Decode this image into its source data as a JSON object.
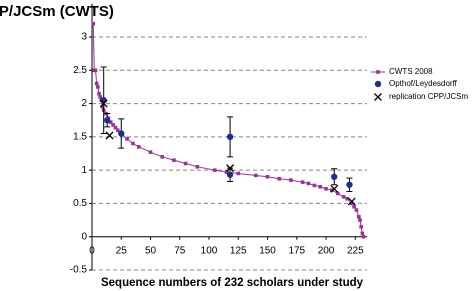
{
  "chart_data": {
    "type": "scatter",
    "title": "CPP/JCSm (CWTS)",
    "x_label": "Sequence numbers of 232 scholars under study",
    "xlim": [
      0,
      235
    ],
    "xticks": [
      0,
      25,
      50,
      75,
      100,
      125,
      150,
      175,
      200,
      225
    ],
    "ylim": [
      -0.5,
      3.5
    ],
    "yticks": [
      -0.5,
      0,
      0.5,
      1,
      1.5,
      2,
      2.5,
      3
    ],
    "grid": true,
    "legend": "right",
    "series": [
      {
        "name": "CWTS 2008",
        "color": "#993399",
        "marker": "square",
        "line": true,
        "x": [
          1,
          2,
          3,
          4,
          5,
          6,
          7,
          8,
          9,
          10,
          12,
          14,
          16,
          18,
          20,
          22,
          25,
          30,
          35,
          40,
          50,
          60,
          70,
          80,
          90,
          105,
          115,
          125,
          140,
          150,
          160,
          170,
          180,
          185,
          190,
          195,
          200,
          205,
          210,
          215,
          218,
          222,
          224,
          226,
          228,
          229,
          230,
          231,
          232
        ],
        "values": [
          3.2,
          2.5,
          2.5,
          2.3,
          2.25,
          2.15,
          2.1,
          2.05,
          1.95,
          1.9,
          1.85,
          1.78,
          1.72,
          1.68,
          1.64,
          1.6,
          1.55,
          1.47,
          1.4,
          1.35,
          1.27,
          1.2,
          1.15,
          1.1,
          1.05,
          1.0,
          0.97,
          0.95,
          0.92,
          0.9,
          0.87,
          0.85,
          0.82,
          0.8,
          0.77,
          0.75,
          0.72,
          0.7,
          0.65,
          0.6,
          0.57,
          0.5,
          0.45,
          0.4,
          0.3,
          0.25,
          0.15,
          0.05,
          0
        ]
      },
      {
        "name": "Opthof/Leydesdorff",
        "color": "#1f2e8c",
        "marker": "circle",
        "x": [
          10,
          13,
          25,
          118,
          118,
          207,
          220
        ],
        "values": [
          2.05,
          1.75,
          1.55,
          1.5,
          0.93,
          0.9,
          0.78
        ],
        "errors": [
          0.5,
          0.1,
          0.22,
          0.3,
          0.1,
          0.12,
          0.1
        ]
      },
      {
        "name": "replication CPP/JCSm",
        "color": "#000000",
        "marker": "x",
        "x": [
          10,
          15,
          118,
          207,
          222
        ],
        "values": [
          2.0,
          1.52,
          1.03,
          0.72,
          0.53
        ]
      }
    ]
  }
}
